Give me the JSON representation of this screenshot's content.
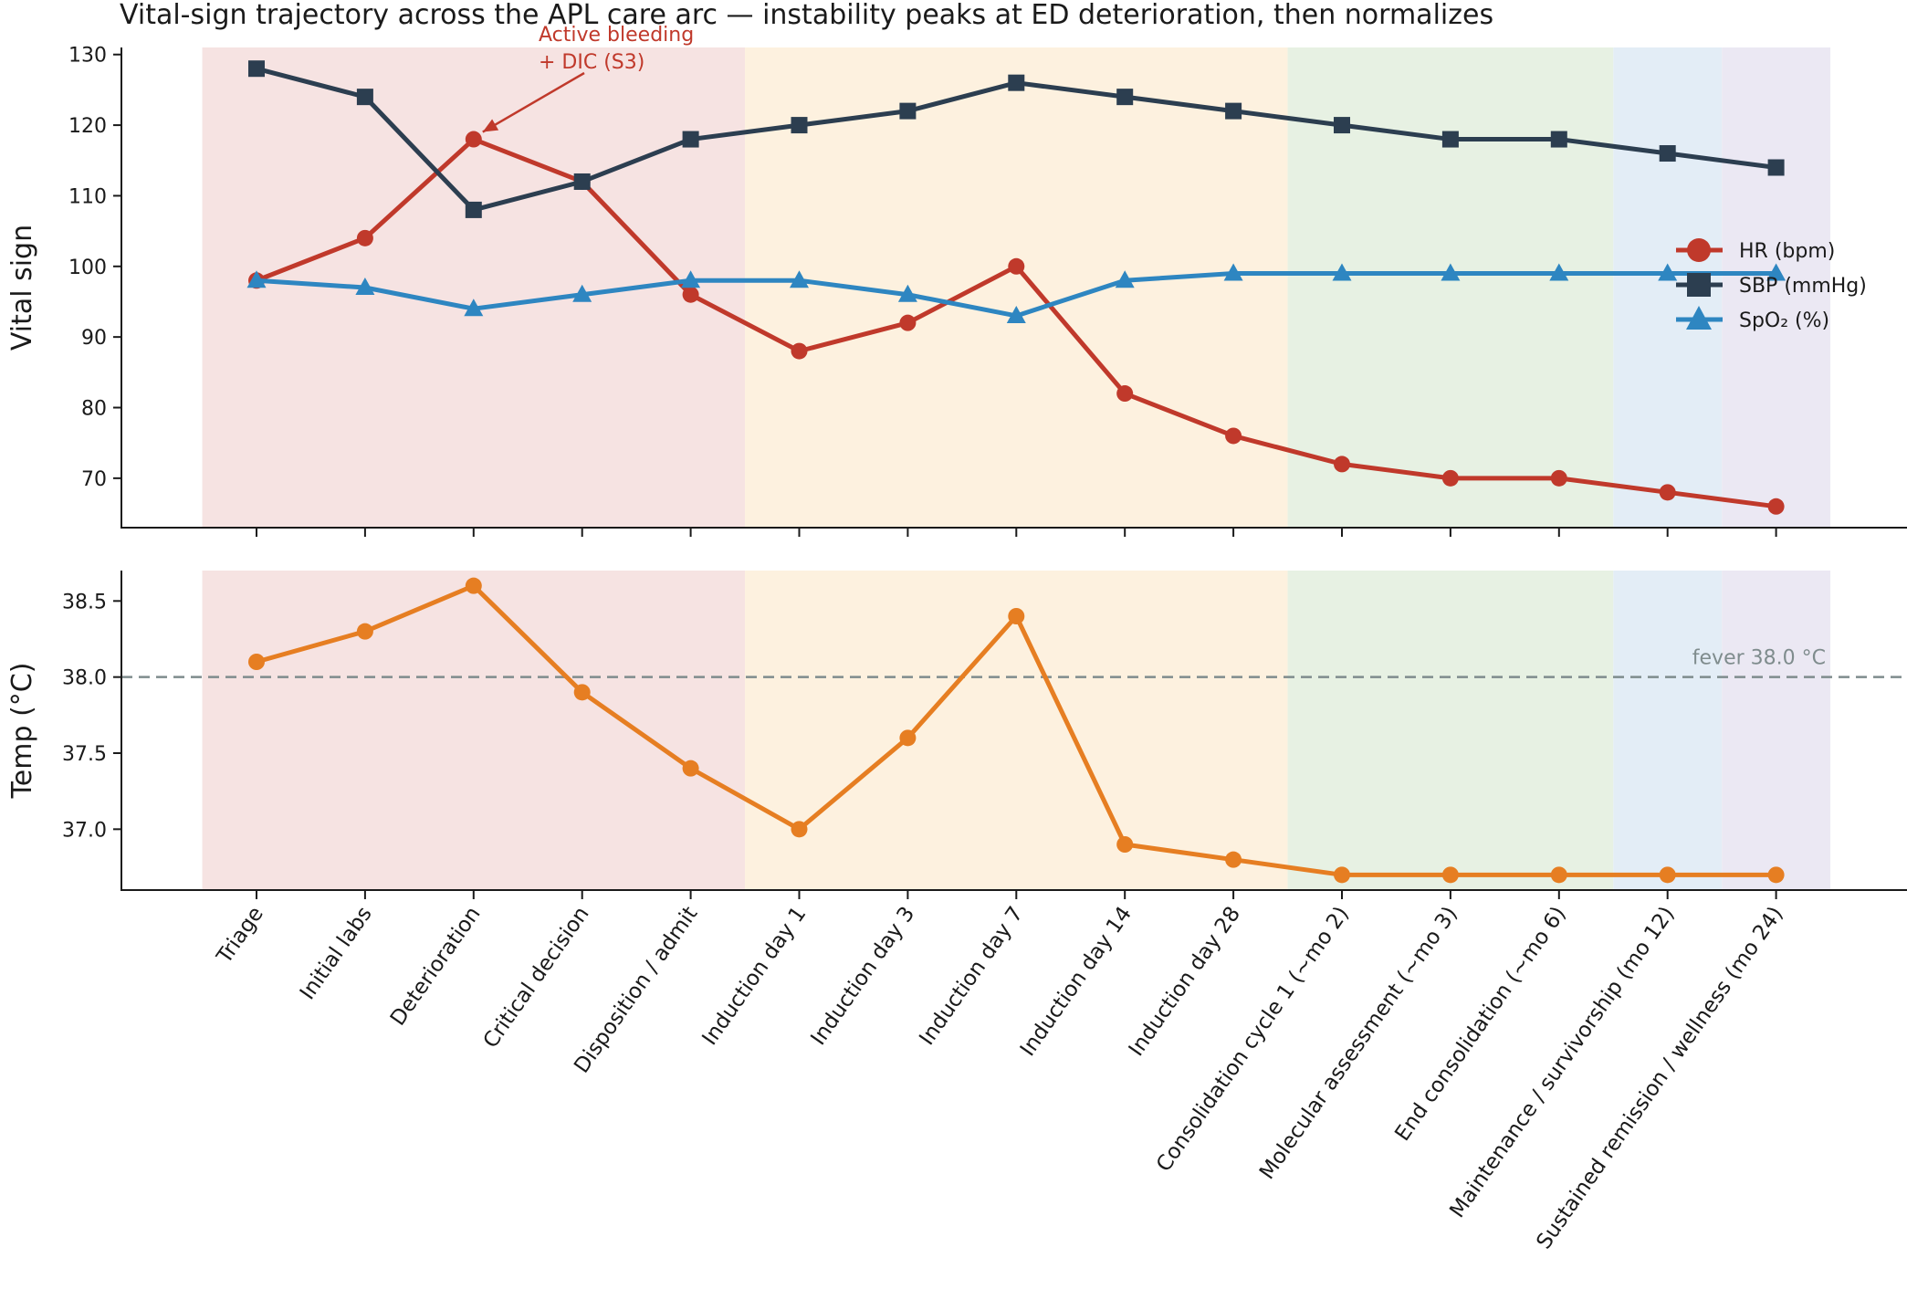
{
  "chart_data": {
    "title": "Vital-sign trajectory across the APL care arc — instability peaks at ED deterioration, then normalizes",
    "categories": [
      "Triage",
      "Initial labs",
      "Deterioration",
      "Critical decision",
      "Disposition / admit",
      "Induction day 1",
      "Induction day 3",
      "Induction day 7",
      "Induction day 14",
      "Induction day 28",
      "Consolidation cycle 1 (~mo 2)",
      "Molecular assessment (~mo 3)",
      "End consolidation (~mo 6)",
      "Maintenance / survivorship (mo 12)",
      "Sustained remission / wellness (mo 24)"
    ],
    "phase_bands": [
      {
        "start": 0,
        "end": 4,
        "color": "#f6e3e2"
      },
      {
        "start": 5,
        "end": 9,
        "color": "#fdf1df"
      },
      {
        "start": 10,
        "end": 12,
        "color": "#e7f1e3"
      },
      {
        "start": 13,
        "end": 13,
        "color": "#e3edf6"
      },
      {
        "start": 14,
        "end": 14,
        "color": "#ebe8f3"
      }
    ],
    "panels": [
      {
        "type": "line",
        "ylabel": "Vital sign",
        "ylim": [
          63,
          131
        ],
        "yticks": [
          70,
          80,
          90,
          100,
          110,
          120,
          130
        ],
        "tick_decimals": 0,
        "legend_position": "right",
        "series": [
          {
            "name": "HR (bpm)",
            "color": "#c0392b",
            "marker": "circle",
            "values": [
              98,
              104,
              118,
              112,
              96,
              88,
              92,
              100,
              82,
              76,
              72,
              70,
              70,
              68,
              66
            ]
          },
          {
            "name": "SBP (mmHg)",
            "color": "#2c3e50",
            "marker": "square",
            "values": [
              128,
              124,
              108,
              112,
              118,
              120,
              122,
              126,
              124,
              122,
              120,
              118,
              118,
              116,
              114
            ]
          },
          {
            "name": "SpO₂ (%)",
            "color": "#2e86c1",
            "marker": "triangle",
            "values": [
              98,
              97,
              94,
              96,
              98,
              98,
              96,
              93,
              98,
              99,
              99,
              99,
              99,
              99,
              99
            ]
          }
        ],
        "annotations": [
          {
            "lines": [
              "Active bleeding",
              "+ DIC (S3)"
            ],
            "color": "#c0392b",
            "target_index": 2,
            "target_value": 118
          }
        ]
      },
      {
        "type": "line",
        "ylabel": "Temp (°C)",
        "ylim": [
          36.6,
          38.7
        ],
        "yticks": [
          37.0,
          37.5,
          38.0,
          38.5
        ],
        "tick_decimals": 1,
        "series": [
          {
            "name": "Temp",
            "color": "#e67e22",
            "marker": "circle",
            "values": [
              38.1,
              38.3,
              38.6,
              37.9,
              37.4,
              37.0,
              37.6,
              38.4,
              36.9,
              36.8,
              36.7,
              36.7,
              36.7,
              36.7,
              36.7
            ]
          }
        ],
        "reference_line": {
          "value": 38.0,
          "label": "fever 38.0 °C",
          "color": "#7f8c8d"
        }
      }
    ]
  }
}
